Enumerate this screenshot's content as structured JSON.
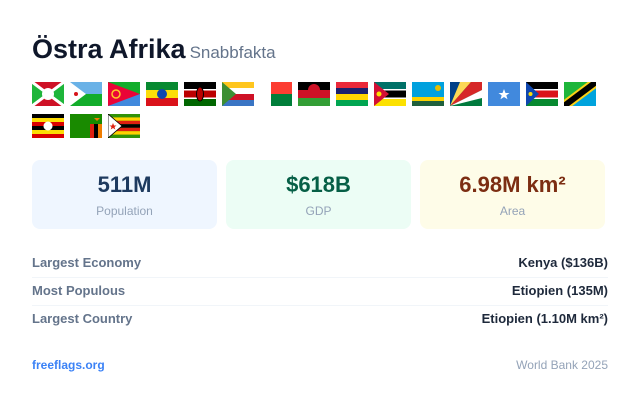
{
  "header": {
    "title": "Östra Afrika",
    "subtitle": "Snabbfakta"
  },
  "stats": [
    {
      "value": "511M",
      "label": "Population"
    },
    {
      "value": "$618B",
      "label": "GDP"
    },
    {
      "value": "6.98M km²",
      "label": "Area"
    }
  ],
  "facts": [
    {
      "label": "Largest Economy",
      "value": "Kenya ($136B)"
    },
    {
      "label": "Most Populous",
      "value": "Etiopien (135M)"
    },
    {
      "label": "Largest Country",
      "value": "Etiopien (1.10M km²)"
    }
  ],
  "footer": {
    "link": "freeflags.org",
    "source": "World Bank 2025"
  }
}
